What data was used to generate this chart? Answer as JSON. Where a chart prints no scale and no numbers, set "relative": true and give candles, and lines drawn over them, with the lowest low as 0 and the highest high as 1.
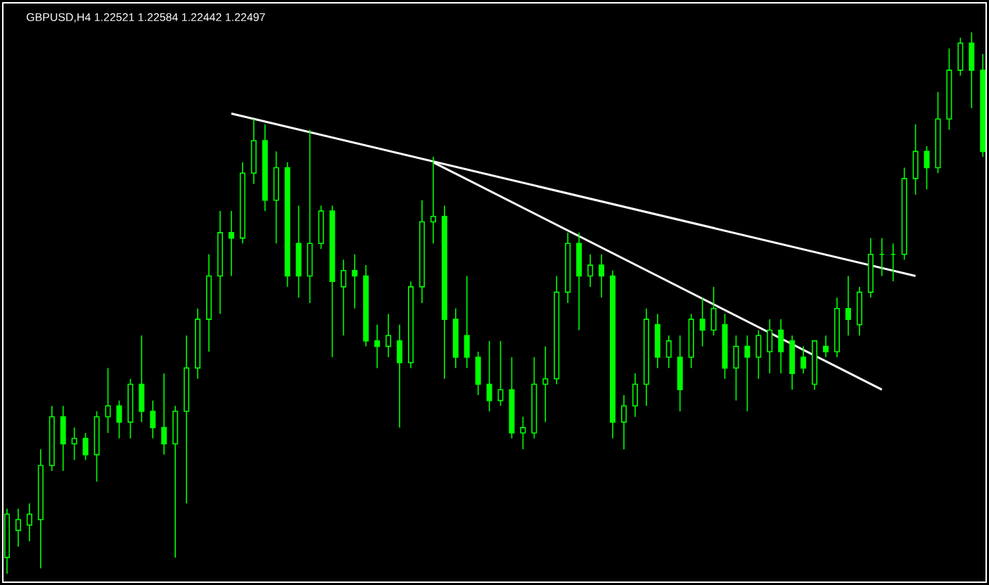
{
  "chart_data": {
    "type": "candlestick",
    "title": "GBPUSD,H4  1.22521 1.22584 1.22442 1.22497",
    "relative": true,
    "color": "#00ff00",
    "categories": [
      null,
      null,
      null,
      null,
      null,
      null,
      null,
      null,
      null,
      null,
      null,
      null,
      null,
      null,
      null,
      null,
      null,
      null,
      null,
      null,
      null,
      null,
      null,
      null,
      null,
      null,
      null,
      null,
      null,
      null,
      null,
      null,
      null,
      null,
      null,
      null,
      null,
      null,
      null,
      null,
      null,
      null,
      null,
      null,
      null,
      null,
      null,
      null,
      null,
      null,
      null,
      null,
      null,
      null,
      null,
      null,
      null,
      null,
      null,
      null,
      null,
      null,
      null,
      null,
      null,
      null,
      null,
      null,
      null,
      null,
      null,
      null,
      null,
      null,
      null,
      null,
      null,
      null,
      null,
      null,
      null,
      null,
      null,
      null,
      null,
      null,
      null,
      null
    ],
    "ohlc": [
      [
        0.03,
        0.12,
        0,
        0.11
      ],
      [
        0.08,
        0.12,
        0.05,
        0.1
      ],
      [
        0.09,
        0.13,
        0.06,
        0.11
      ],
      [
        0.1,
        0.23,
        0.01,
        0.2
      ],
      [
        0.2,
        0.31,
        0.19,
        0.29
      ],
      [
        0.29,
        0.31,
        0.19,
        0.24
      ],
      [
        0.24,
        0.27,
        0.21,
        0.25
      ],
      [
        0.25,
        0.26,
        0.21,
        0.22
      ],
      [
        0.22,
        0.3,
        0.17,
        0.29
      ],
      [
        0.29,
        0.38,
        0.26,
        0.31
      ],
      [
        0.31,
        0.32,
        0.25,
        0.28
      ],
      [
        0.28,
        0.36,
        0.25,
        0.35
      ],
      [
        0.35,
        0.44,
        0.28,
        0.3
      ],
      [
        0.3,
        0.32,
        0.25,
        0.27
      ],
      [
        0.27,
        0.37,
        0.22,
        0.24
      ],
      [
        0.24,
        0.31,
        0.03,
        0.3
      ],
      [
        0.3,
        0.44,
        0.13,
        0.38
      ],
      [
        0.38,
        0.49,
        0.36,
        0.47
      ],
      [
        0.47,
        0.59,
        0.41,
        0.55
      ],
      [
        0.55,
        0.67,
        0.48,
        0.63
      ],
      [
        0.63,
        0.67,
        0.55,
        0.62
      ],
      [
        0.62,
        0.76,
        0.61,
        0.74
      ],
      [
        0.74,
        0.84,
        0.72,
        0.8
      ],
      [
        0.8,
        0.83,
        0.67,
        0.69
      ],
      [
        0.69,
        0.78,
        0.61,
        0.75
      ],
      [
        0.75,
        0.76,
        0.53,
        0.55
      ],
      [
        0.61,
        0.68,
        0.51,
        0.55
      ],
      [
        0.55,
        0.82,
        0.5,
        0.61
      ],
      [
        0.61,
        0.68,
        0.6,
        0.67
      ],
      [
        0.67,
        0.68,
        0.4,
        0.54
      ],
      [
        0.53,
        0.58,
        0.44,
        0.56
      ],
      [
        0.56,
        0.59,
        0.49,
        0.55
      ],
      [
        0.55,
        0.57,
        0.42,
        0.43
      ],
      [
        0.43,
        0.46,
        0.38,
        0.42
      ],
      [
        0.42,
        0.48,
        0.4,
        0.44
      ],
      [
        0.43,
        0.46,
        0.27,
        0.39
      ],
      [
        0.39,
        0.54,
        0.38,
        0.53
      ],
      [
        0.53,
        0.69,
        0.5,
        0.65
      ],
      [
        0.65,
        0.77,
        0.61,
        0.66
      ],
      [
        0.66,
        0.68,
        0.36,
        0.47
      ],
      [
        0.47,
        0.49,
        0.38,
        0.4
      ],
      [
        0.44,
        0.55,
        0.38,
        0.4
      ],
      [
        0.4,
        0.41,
        0.33,
        0.35
      ],
      [
        0.35,
        0.43,
        0.3,
        0.32
      ],
      [
        0.32,
        0.43,
        0.31,
        0.34
      ],
      [
        0.34,
        0.4,
        0.25,
        0.26
      ],
      [
        0.26,
        0.29,
        0.23,
        0.27
      ],
      [
        0.26,
        0.4,
        0.25,
        0.35
      ],
      [
        0.35,
        0.42,
        0.28,
        0.36
      ],
      [
        0.36,
        0.55,
        0.35,
        0.52
      ],
      [
        0.52,
        0.63,
        0.5,
        0.61
      ],
      [
        0.61,
        0.63,
        0.45,
        0.55
      ],
      [
        0.55,
        0.59,
        0.53,
        0.57
      ],
      [
        0.57,
        0.59,
        0.51,
        0.55
      ],
      [
        0.55,
        0.56,
        0.25,
        0.28
      ],
      [
        0.28,
        0.33,
        0.23,
        0.31
      ],
      [
        0.31,
        0.37,
        0.29,
        0.35
      ],
      [
        0.35,
        0.49,
        0.31,
        0.47
      ],
      [
        0.46,
        0.48,
        0.38,
        0.4
      ],
      [
        0.4,
        0.44,
        0.38,
        0.43
      ],
      [
        0.4,
        0.44,
        0.3,
        0.34
      ],
      [
        0.4,
        0.48,
        0.38,
        0.47
      ],
      [
        0.47,
        0.51,
        0.42,
        0.45
      ],
      [
        0.45,
        0.53,
        0.44,
        0.49
      ],
      [
        0.46,
        0.48,
        0.36,
        0.38
      ],
      [
        0.38,
        0.44,
        0.32,
        0.42
      ],
      [
        0.42,
        0.44,
        0.3,
        0.4
      ],
      [
        0.4,
        0.45,
        0.36,
        0.44
      ],
      [
        0.41,
        0.47,
        0.37,
        0.45
      ],
      [
        0.45,
        0.47,
        0.37,
        0.41
      ],
      [
        0.43,
        0.44,
        0.34,
        0.37
      ],
      [
        0.4,
        0.42,
        0.37,
        0.38
      ],
      [
        0.35,
        0.43,
        0.34,
        0.43
      ],
      [
        0.42,
        0.44,
        0.4,
        0.41
      ],
      [
        0.41,
        0.51,
        0.4,
        0.49
      ],
      [
        0.49,
        0.55,
        0.44,
        0.47
      ],
      [
        0.46,
        0.53,
        0.44,
        0.52
      ],
      [
        0.52,
        0.62,
        0.51,
        0.59
      ],
      [
        0.59,
        0.62,
        0.55,
        0.59
      ],
      [
        0.59,
        0.61,
        0.54,
        0.59
      ],
      [
        0.59,
        0.75,
        0.58,
        0.73
      ],
      [
        0.73,
        0.83,
        0.7,
        0.78
      ],
      [
        0.78,
        0.79,
        0.71,
        0.75
      ],
      [
        0.75,
        0.89,
        0.74,
        0.84
      ],
      [
        0.84,
        0.97,
        0.82,
        0.93
      ],
      [
        0.93,
        0.99,
        0.92,
        0.98
      ],
      [
        0.98,
        1.0,
        0.86,
        0.93
      ],
      [
        0.93,
        0.96,
        0.77,
        0.78
      ]
    ],
    "series": [
      {
        "type": "line",
        "color": "#ffffff",
        "values": [
          null,
          null,
          null,
          null,
          null,
          null,
          null,
          null,
          null,
          null,
          null,
          null,
          null,
          null,
          null,
          null,
          null,
          null,
          null,
          null,
          0.85,
          null,
          null,
          null,
          null,
          null,
          null,
          null,
          null,
          null,
          null,
          null,
          null,
          null,
          null,
          null,
          null,
          null,
          null,
          null,
          null,
          null,
          null,
          null,
          null,
          null,
          null,
          null,
          null,
          null,
          null,
          null,
          null,
          null,
          null,
          null,
          null,
          null,
          null,
          null,
          null,
          null,
          null,
          null,
          null,
          null,
          null,
          null,
          null,
          null,
          null,
          null,
          null,
          null,
          null,
          null,
          null,
          null,
          null,
          null,
          null,
          0.55,
          null,
          null,
          null,
          null,
          null,
          null
        ]
      },
      {
        "type": "line",
        "color": "#ffffff",
        "values": [
          null,
          null,
          null,
          null,
          null,
          null,
          null,
          null,
          null,
          null,
          null,
          null,
          null,
          null,
          null,
          null,
          null,
          null,
          null,
          null,
          null,
          null,
          null,
          null,
          null,
          null,
          null,
          null,
          null,
          null,
          null,
          null,
          null,
          null,
          null,
          null,
          null,
          null,
          0.76,
          null,
          null,
          null,
          null,
          null,
          null,
          null,
          null,
          null,
          null,
          null,
          null,
          null,
          null,
          null,
          null,
          null,
          null,
          null,
          null,
          null,
          null,
          null,
          null,
          null,
          null,
          null,
          null,
          null,
          null,
          null,
          null,
          null,
          null,
          null,
          null,
          null,
          null,
          null,
          0.34,
          null,
          null,
          null,
          null,
          null,
          null,
          null,
          null,
          null
        ]
      }
    ]
  }
}
